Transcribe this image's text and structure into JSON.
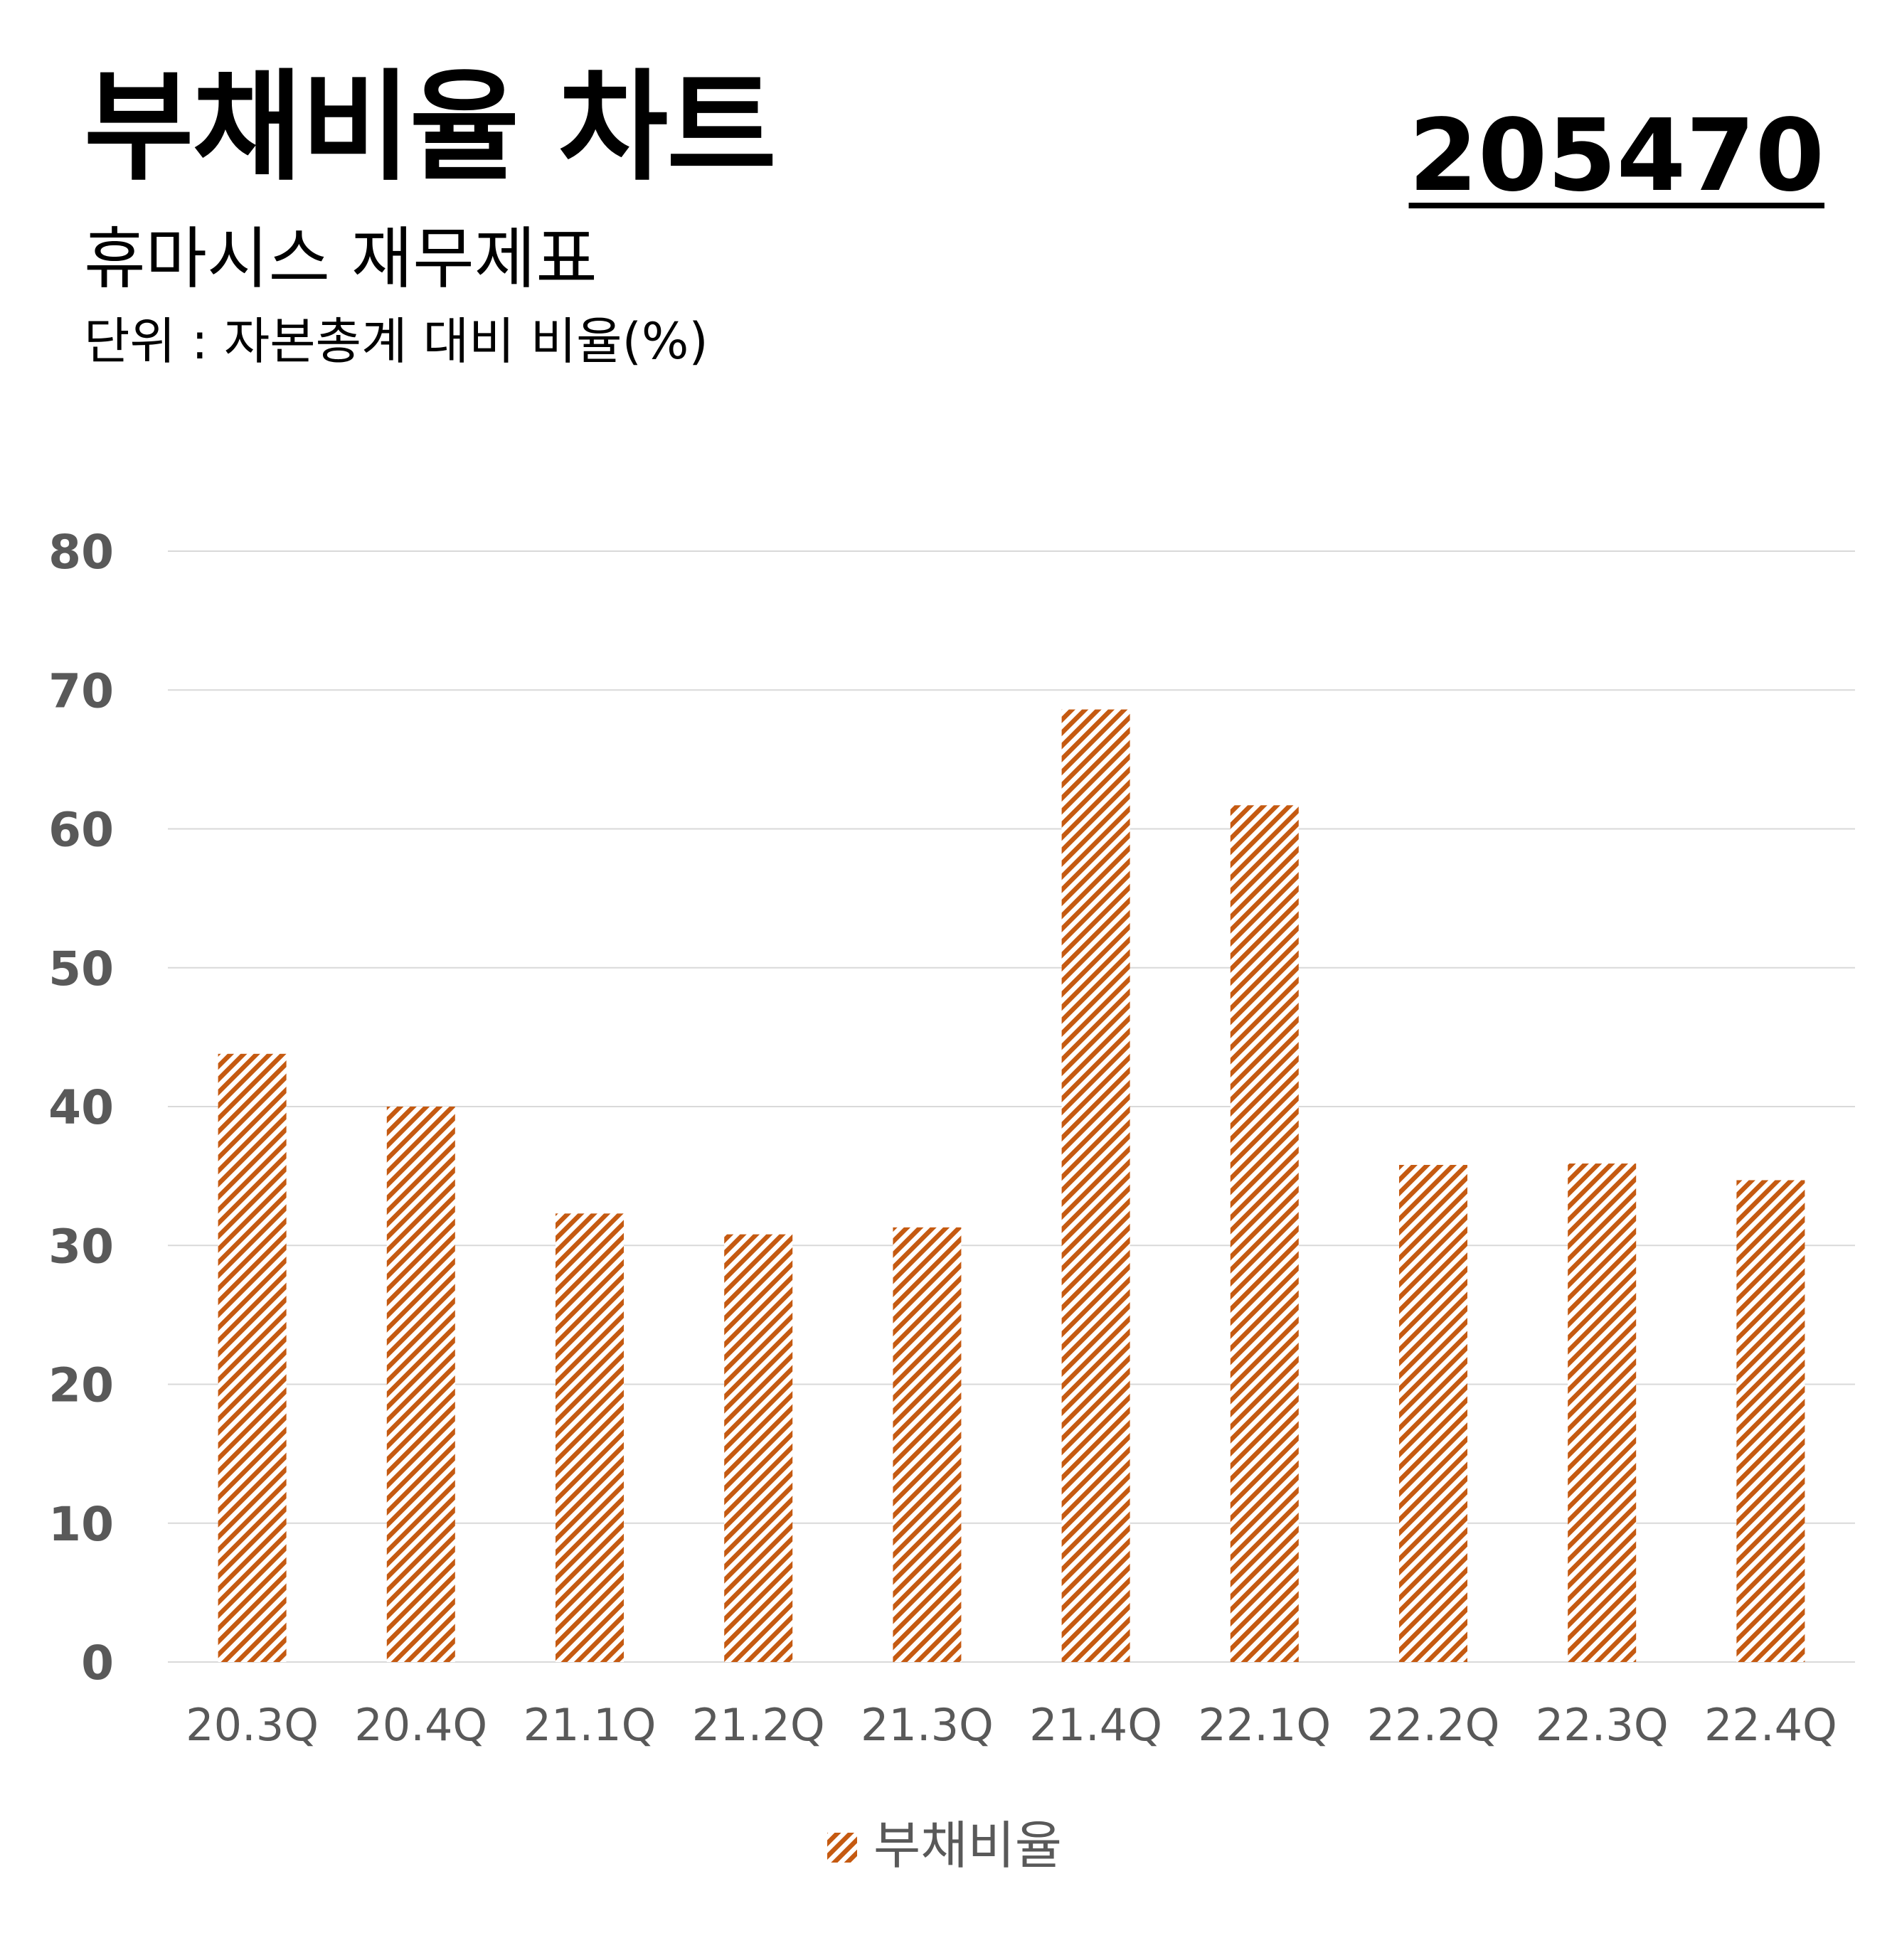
{
  "header": {
    "title": "부채비율 차트",
    "code": "205470",
    "subtitle": "휴마시스 재무제표",
    "unit": "단위 : 자본총계 대비 비율(%)"
  },
  "colors": {
    "bar": "#c55a11",
    "grid": "#d9d9d9",
    "tick": "#595959"
  },
  "chart_data": {
    "type": "bar",
    "title": "",
    "xlabel": "",
    "ylabel": "",
    "categories": [
      "20.3Q",
      "20.4Q",
      "21.1Q",
      "21.2Q",
      "21.3Q",
      "21.4Q",
      "22.1Q",
      "22.2Q",
      "22.3Q",
      "22.4Q"
    ],
    "series": [
      {
        "name": "부채비율",
        "values": [
          43.8,
          40.0,
          32.3,
          30.8,
          31.3,
          68.6,
          61.7,
          35.8,
          35.9,
          34.7
        ],
        "pattern": "diagonal-hatch"
      }
    ],
    "ylim": [
      0,
      80
    ],
    "yticks": [
      0,
      10,
      20,
      30,
      40,
      50,
      60,
      70,
      80
    ],
    "grid": true,
    "legend": "bottom"
  }
}
